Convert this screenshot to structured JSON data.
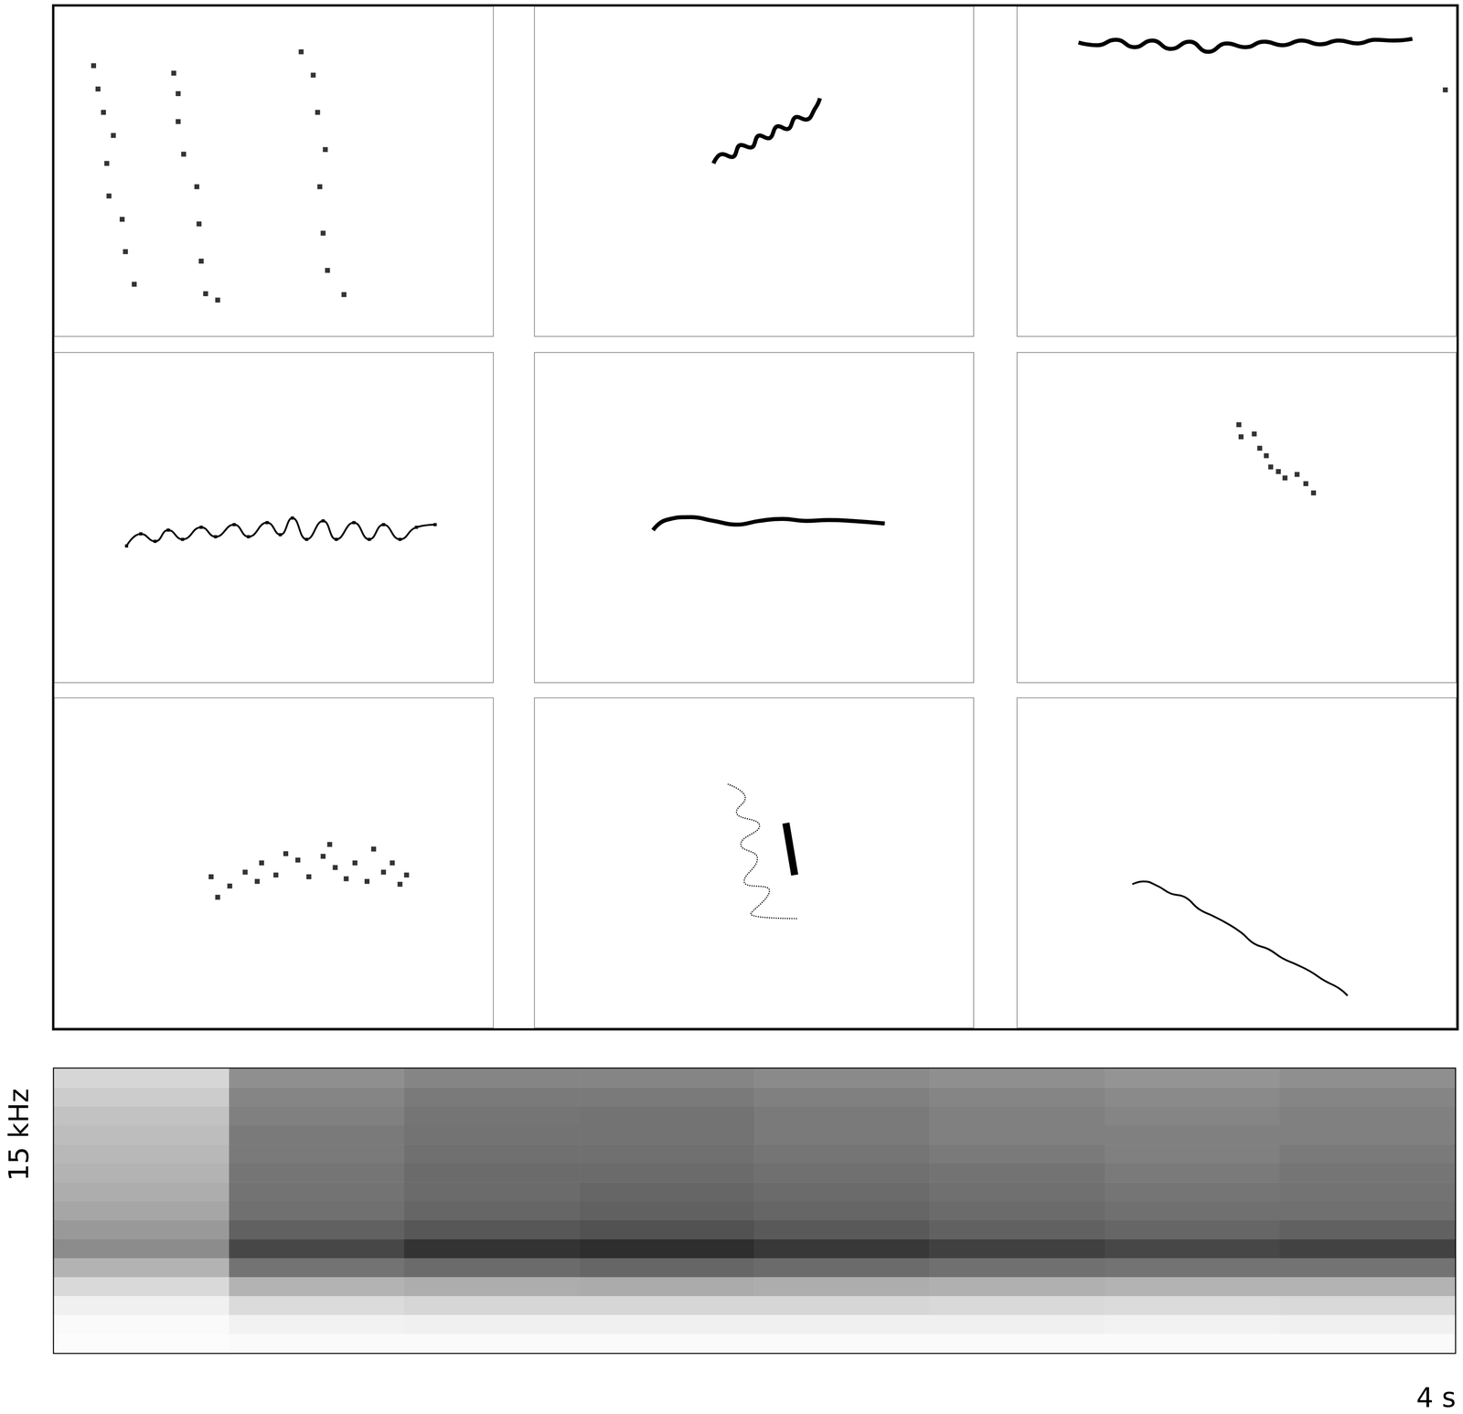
{
  "chart_data": [
    {
      "type": "contour",
      "xlim": [
        0,
        4
      ],
      "ylim": [
        0,
        15
      ],
      "tick_labels": false,
      "series": [
        {
          "type": "scatter",
          "marker": "square",
          "values": [
            [
              0.36,
              12.3
            ],
            [
              0.4,
              11.24
            ],
            [
              0.45,
              10.18
            ],
            [
              0.54,
              9.13
            ],
            [
              0.48,
              7.86
            ],
            [
              0.5,
              6.38
            ],
            [
              0.62,
              5.32
            ],
            [
              0.65,
              3.85
            ],
            [
              0.73,
              2.37
            ]
          ]
        },
        {
          "type": "scatter",
          "marker": "square",
          "values": [
            [
              1.09,
              11.96
            ],
            [
              1.13,
              11.03
            ],
            [
              1.13,
              9.76
            ],
            [
              1.18,
              8.28
            ],
            [
              1.3,
              6.8
            ],
            [
              1.32,
              5.11
            ],
            [
              1.34,
              3.42
            ],
            [
              1.38,
              1.94
            ],
            [
              1.49,
              1.65
            ]
          ]
        },
        {
          "type": "scatter",
          "marker": "square",
          "values": [
            [
              2.25,
              12.93
            ],
            [
              2.36,
              11.87
            ],
            [
              2.4,
              10.18
            ],
            [
              2.47,
              8.49
            ],
            [
              2.42,
              6.8
            ],
            [
              2.45,
              4.69
            ],
            [
              2.49,
              3.0
            ],
            [
              2.64,
              1.9
            ]
          ]
        }
      ]
    },
    {
      "type": "contour",
      "xlim": [
        0,
        4
      ],
      "ylim": [
        0,
        15
      ],
      "tick_labels": false,
      "series": [
        {
          "type": "line",
          "line_style": "thick",
          "values": [
            [
              1.63,
              7.86
            ],
            [
              1.71,
              8.28
            ],
            [
              1.8,
              8.15
            ],
            [
              1.88,
              8.7
            ],
            [
              1.97,
              8.58
            ],
            [
              2.05,
              9.13
            ],
            [
              2.13,
              9.0
            ],
            [
              2.22,
              9.55
            ],
            [
              2.3,
              9.42
            ],
            [
              2.39,
              9.97
            ],
            [
              2.47,
              9.85
            ],
            [
              2.56,
              10.39
            ],
            [
              2.6,
              10.82
            ]
          ]
        }
      ]
    },
    {
      "type": "contour",
      "xlim": [
        0,
        4
      ],
      "ylim": [
        0,
        15
      ],
      "tick_labels": false,
      "series": [
        {
          "type": "line",
          "line_style": "thick",
          "values": [
            [
              0.56,
              13.35
            ],
            [
              0.73,
              13.23
            ],
            [
              0.9,
              13.48
            ],
            [
              1.07,
              13.14
            ],
            [
              1.23,
              13.44
            ],
            [
              1.4,
              13.06
            ],
            [
              1.57,
              13.39
            ],
            [
              1.74,
              12.93
            ],
            [
              1.91,
              13.31
            ],
            [
              2.08,
              13.14
            ],
            [
              2.25,
              13.39
            ],
            [
              2.42,
              13.23
            ],
            [
              2.59,
              13.44
            ],
            [
              2.76,
              13.27
            ],
            [
              2.93,
              13.44
            ],
            [
              3.1,
              13.31
            ],
            [
              3.26,
              13.48
            ],
            [
              3.43,
              13.44
            ],
            [
              3.6,
              13.52
            ]
          ]
        },
        {
          "type": "scatter",
          "marker": "square",
          "values": [
            [
              3.9,
              11.2
            ]
          ]
        }
      ]
    },
    {
      "type": "contour",
      "xlim": [
        0,
        4
      ],
      "ylim": [
        0,
        15
      ],
      "tick_labels": false,
      "series": [
        {
          "type": "line",
          "line_style": "solid",
          "marker": "square",
          "values": [
            [
              0.66,
              6.21
            ],
            [
              0.79,
              6.76
            ],
            [
              0.92,
              6.42
            ],
            [
              1.04,
              6.93
            ],
            [
              1.17,
              6.51
            ],
            [
              1.34,
              7.06
            ],
            [
              1.47,
              6.63
            ],
            [
              1.64,
              7.18
            ],
            [
              1.77,
              6.63
            ],
            [
              1.94,
              7.27
            ],
            [
              2.06,
              6.72
            ],
            [
              2.17,
              7.48
            ],
            [
              2.3,
              6.51
            ],
            [
              2.45,
              7.35
            ],
            [
              2.57,
              6.51
            ],
            [
              2.73,
              7.27
            ],
            [
              2.87,
              6.51
            ],
            [
              3.0,
              7.18
            ],
            [
              3.15,
              6.51
            ],
            [
              3.3,
              7.06
            ],
            [
              3.47,
              7.18
            ]
          ]
        }
      ]
    },
    {
      "type": "contour",
      "xlim": [
        0,
        4
      ],
      "ylim": [
        0,
        15
      ],
      "tick_labels": false,
      "series": [
        {
          "type": "line",
          "line_style": "thick",
          "values": [
            [
              1.08,
              6.93
            ],
            [
              1.2,
              7.39
            ],
            [
              1.42,
              7.52
            ],
            [
              1.63,
              7.35
            ],
            [
              1.84,
              7.18
            ],
            [
              2.05,
              7.35
            ],
            [
              2.26,
              7.44
            ],
            [
              2.47,
              7.35
            ],
            [
              2.68,
              7.39
            ],
            [
              2.89,
              7.35
            ],
            [
              3.19,
              7.23
            ]
          ]
        }
      ]
    },
    {
      "type": "contour",
      "xlim": [
        0,
        4
      ],
      "ylim": [
        0,
        15
      ],
      "tick_labels": false,
      "series": [
        {
          "type": "scatter",
          "marker": "square",
          "values": [
            [
              2.02,
              11.72
            ],
            [
              2.04,
              11.17
            ],
            [
              2.16,
              11.3
            ],
            [
              2.21,
              10.65
            ],
            [
              2.27,
              10.31
            ],
            [
              2.31,
              9.8
            ],
            [
              2.38,
              9.59
            ],
            [
              2.44,
              9.3
            ],
            [
              2.55,
              9.46
            ],
            [
              2.63,
              9.04
            ],
            [
              2.7,
              8.62
            ]
          ]
        }
      ]
    },
    {
      "type": "contour",
      "xlim": [
        0,
        4
      ],
      "ylim": [
        0,
        15
      ],
      "tick_labels": false,
      "series": [
        {
          "type": "scatter",
          "marker": "square",
          "values": [
            [
              1.43,
              6.87
            ],
            [
              1.49,
              5.94
            ],
            [
              1.6,
              6.45
            ],
            [
              1.74,
              7.08
            ],
            [
              1.85,
              6.66
            ],
            [
              1.89,
              7.5
            ],
            [
              2.02,
              6.95
            ],
            [
              2.11,
              7.92
            ],
            [
              2.22,
              7.63
            ],
            [
              2.32,
              6.87
            ],
            [
              2.45,
              7.8
            ],
            [
              2.51,
              8.34
            ],
            [
              2.56,
              7.29
            ],
            [
              2.66,
              6.78
            ],
            [
              2.74,
              7.5
            ],
            [
              2.85,
              6.66
            ],
            [
              2.91,
              8.13
            ],
            [
              3.0,
              7.08
            ],
            [
              3.08,
              7.5
            ],
            [
              3.15,
              6.53
            ],
            [
              3.21,
              6.95
            ]
          ]
        }
      ]
    },
    {
      "type": "contour",
      "xlim": [
        0,
        4
      ],
      "ylim": [
        0,
        15
      ],
      "tick_labels": false,
      "series": [
        {
          "type": "line",
          "line_style": "dotted",
          "values": [
            [
              1.76,
              11.08
            ],
            [
              1.92,
              10.45
            ],
            [
              1.84,
              9.82
            ],
            [
              2.05,
              9.19
            ],
            [
              1.88,
              8.34
            ],
            [
              2.03,
              7.71
            ],
            [
              1.91,
              6.66
            ],
            [
              2.14,
              6.24
            ],
            [
              1.97,
              5.18
            ],
            [
              2.39,
              4.97
            ]
          ]
        },
        {
          "type": "line",
          "line_style": "bar",
          "values": [
            [
              2.29,
              9.31
            ],
            [
              2.37,
              6.95
            ]
          ]
        }
      ]
    },
    {
      "type": "contour",
      "xlim": [
        0,
        4
      ],
      "ylim": [
        0,
        15
      ],
      "tick_labels": false,
      "series": [
        {
          "type": "line",
          "line_style": "solid",
          "values": [
            [
              1.05,
              6.53
            ],
            [
              1.15,
              6.66
            ],
            [
              1.28,
              6.45
            ],
            [
              1.4,
              6.11
            ],
            [
              1.53,
              5.94
            ],
            [
              1.66,
              5.39
            ],
            [
              1.78,
              5.1
            ],
            [
              1.91,
              4.76
            ],
            [
              2.04,
              4.34
            ],
            [
              2.16,
              3.83
            ],
            [
              2.29,
              3.58
            ],
            [
              2.42,
              3.16
            ],
            [
              2.55,
              2.87
            ],
            [
              2.67,
              2.57
            ],
            [
              2.8,
              2.15
            ],
            [
              2.93,
              1.81
            ],
            [
              3.01,
              1.47
            ]
          ]
        }
      ]
    },
    {
      "type": "heatmap",
      "tick_labels": false,
      "xlabel": "4 s",
      "ylabel": "15 kHz",
      "x_bins": [
        0,
        0.5,
        1,
        1.5,
        2,
        2.5,
        3,
        3.5,
        4
      ],
      "y_bins": [
        0,
        1,
        2,
        3,
        4,
        5,
        6,
        7,
        8,
        9,
        10,
        11,
        12,
        13,
        14,
        15
      ],
      "color_range": [
        0,
        100
      ],
      "cells": [
        [
          1,
          2,
          2,
          2,
          2,
          2,
          2,
          2
        ],
        [
          2,
          5,
          6,
          6,
          6,
          6,
          5,
          6
        ],
        [
          6,
          14,
          16,
          16,
          16,
          15,
          14,
          15
        ],
        [
          15,
          30,
          32,
          33,
          32,
          31,
          30,
          30
        ],
        [
          30,
          55,
          58,
          60,
          58,
          56,
          55,
          55
        ],
        [
          45,
          72,
          80,
          82,
          78,
          75,
          72,
          74
        ],
        [
          40,
          62,
          66,
          68,
          65,
          62,
          60,
          62
        ],
        [
          35,
          56,
          60,
          62,
          60,
          58,
          56,
          56
        ],
        [
          32,
          55,
          58,
          60,
          58,
          56,
          54,
          55
        ],
        [
          30,
          54,
          58,
          58,
          56,
          55,
          52,
          54
        ],
        [
          28,
          52,
          56,
          56,
          54,
          52,
          50,
          52
        ],
        [
          26,
          52,
          55,
          55,
          52,
          50,
          50,
          50
        ],
        [
          24,
          50,
          54,
          55,
          52,
          50,
          48,
          50
        ],
        [
          20,
          48,
          52,
          52,
          50,
          48,
          46,
          48
        ],
        [
          16,
          44,
          48,
          48,
          46,
          44,
          42,
          44
        ]
      ]
    }
  ]
}
